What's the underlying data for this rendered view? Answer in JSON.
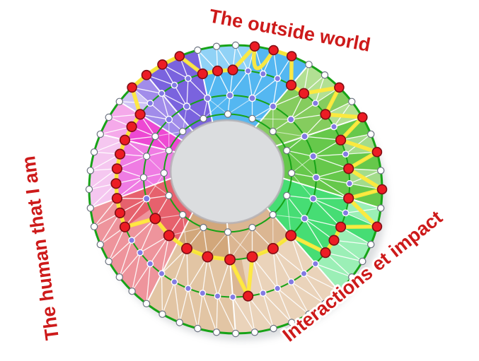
{
  "labels": {
    "top": "The outside world",
    "left": "The human that I am",
    "bottom_right": "Interactions et impact",
    "color": "#CD1A1A"
  },
  "wheel": {
    "description": "Competency wheel: 4 rings (levels 1-4), yellow path marks assessed level per 7.5-degree slice",
    "ring_levels": [
      1,
      2,
      3,
      4
    ],
    "ring_t": [
      0.08,
      0.33,
      0.67,
      1.0
    ],
    "ring_counts": {
      "r1": 16,
      "r2": 24,
      "r3": 48,
      "r4": 48
    },
    "sectors": [
      {
        "name": "blue",
        "start": 345,
        "end": 390,
        "color": "#54B7F1",
        "light": "#90D2F6"
      },
      {
        "name": "green-light",
        "start": 30,
        "end": 60,
        "color": "#85CC5E",
        "light": "#B2E093"
      },
      {
        "name": "green-mid",
        "start": 60,
        "end": 97.5,
        "color": "#66C84B",
        "light": "#A3DC8B"
      },
      {
        "name": "green-bright",
        "start": 97.5,
        "end": 135,
        "color": "#46DD74",
        "light": "#9BEFB6"
      },
      {
        "name": "tan-light",
        "start": 135,
        "end": 180,
        "color": "#DBB692",
        "light": "#EAD3BA"
      },
      {
        "name": "tan-dark",
        "start": 180,
        "end": 217.5,
        "color": "#D2A77B",
        "light": "#E2C5A4"
      },
      {
        "name": "red",
        "start": 217.5,
        "end": 262.5,
        "color": "#E6616D",
        "light": "#EE949C"
      },
      {
        "name": "pink-light",
        "start": 262.5,
        "end": 292.5,
        "color": "#EF7CE3",
        "light": "#F5C7F0"
      },
      {
        "name": "pink-bright",
        "start": 292.5,
        "end": 307.5,
        "color": "#ED49D3",
        "light": "#F5A9EA"
      },
      {
        "name": "violet-light",
        "start": 307.5,
        "end": 322.5,
        "color": "#A18CEA",
        "light": "#CEC3F5"
      },
      {
        "name": "violet-dark",
        "start": 322.5,
        "end": 345,
        "color": "#7A63DE",
        "light": "#B2A5EF"
      }
    ],
    "profile_levels": [
      3,
      4,
      4,
      4,
      3,
      3,
      4,
      3,
      4,
      3,
      4,
      3,
      4,
      3,
      4,
      3,
      3,
      3,
      2,
      2,
      2,
      2,
      2,
      3,
      2,
      2,
      2,
      2,
      2,
      2,
      2,
      2,
      2,
      3,
      3,
      3,
      3,
      3,
      3,
      3,
      3,
      3,
      4,
      4,
      4,
      4,
      3,
      3
    ],
    "u_dip": {
      "angle_a": 7.5,
      "angle_b": 15
    },
    "node_colors": {
      "value_node": "#EC1C24",
      "value_node_stroke": "#7F0E14",
      "mid_node": "#837AE3",
      "mid_node_stroke": "#FFFFFF",
      "plain_node": "#FFFFFF",
      "plain_node_stroke": "#6B7280"
    },
    "line_colors": {
      "ring": "#17A317",
      "web": "#FFFFFF",
      "path": "#FFE93B",
      "hole_rim": "#B4B0B4"
    }
  }
}
